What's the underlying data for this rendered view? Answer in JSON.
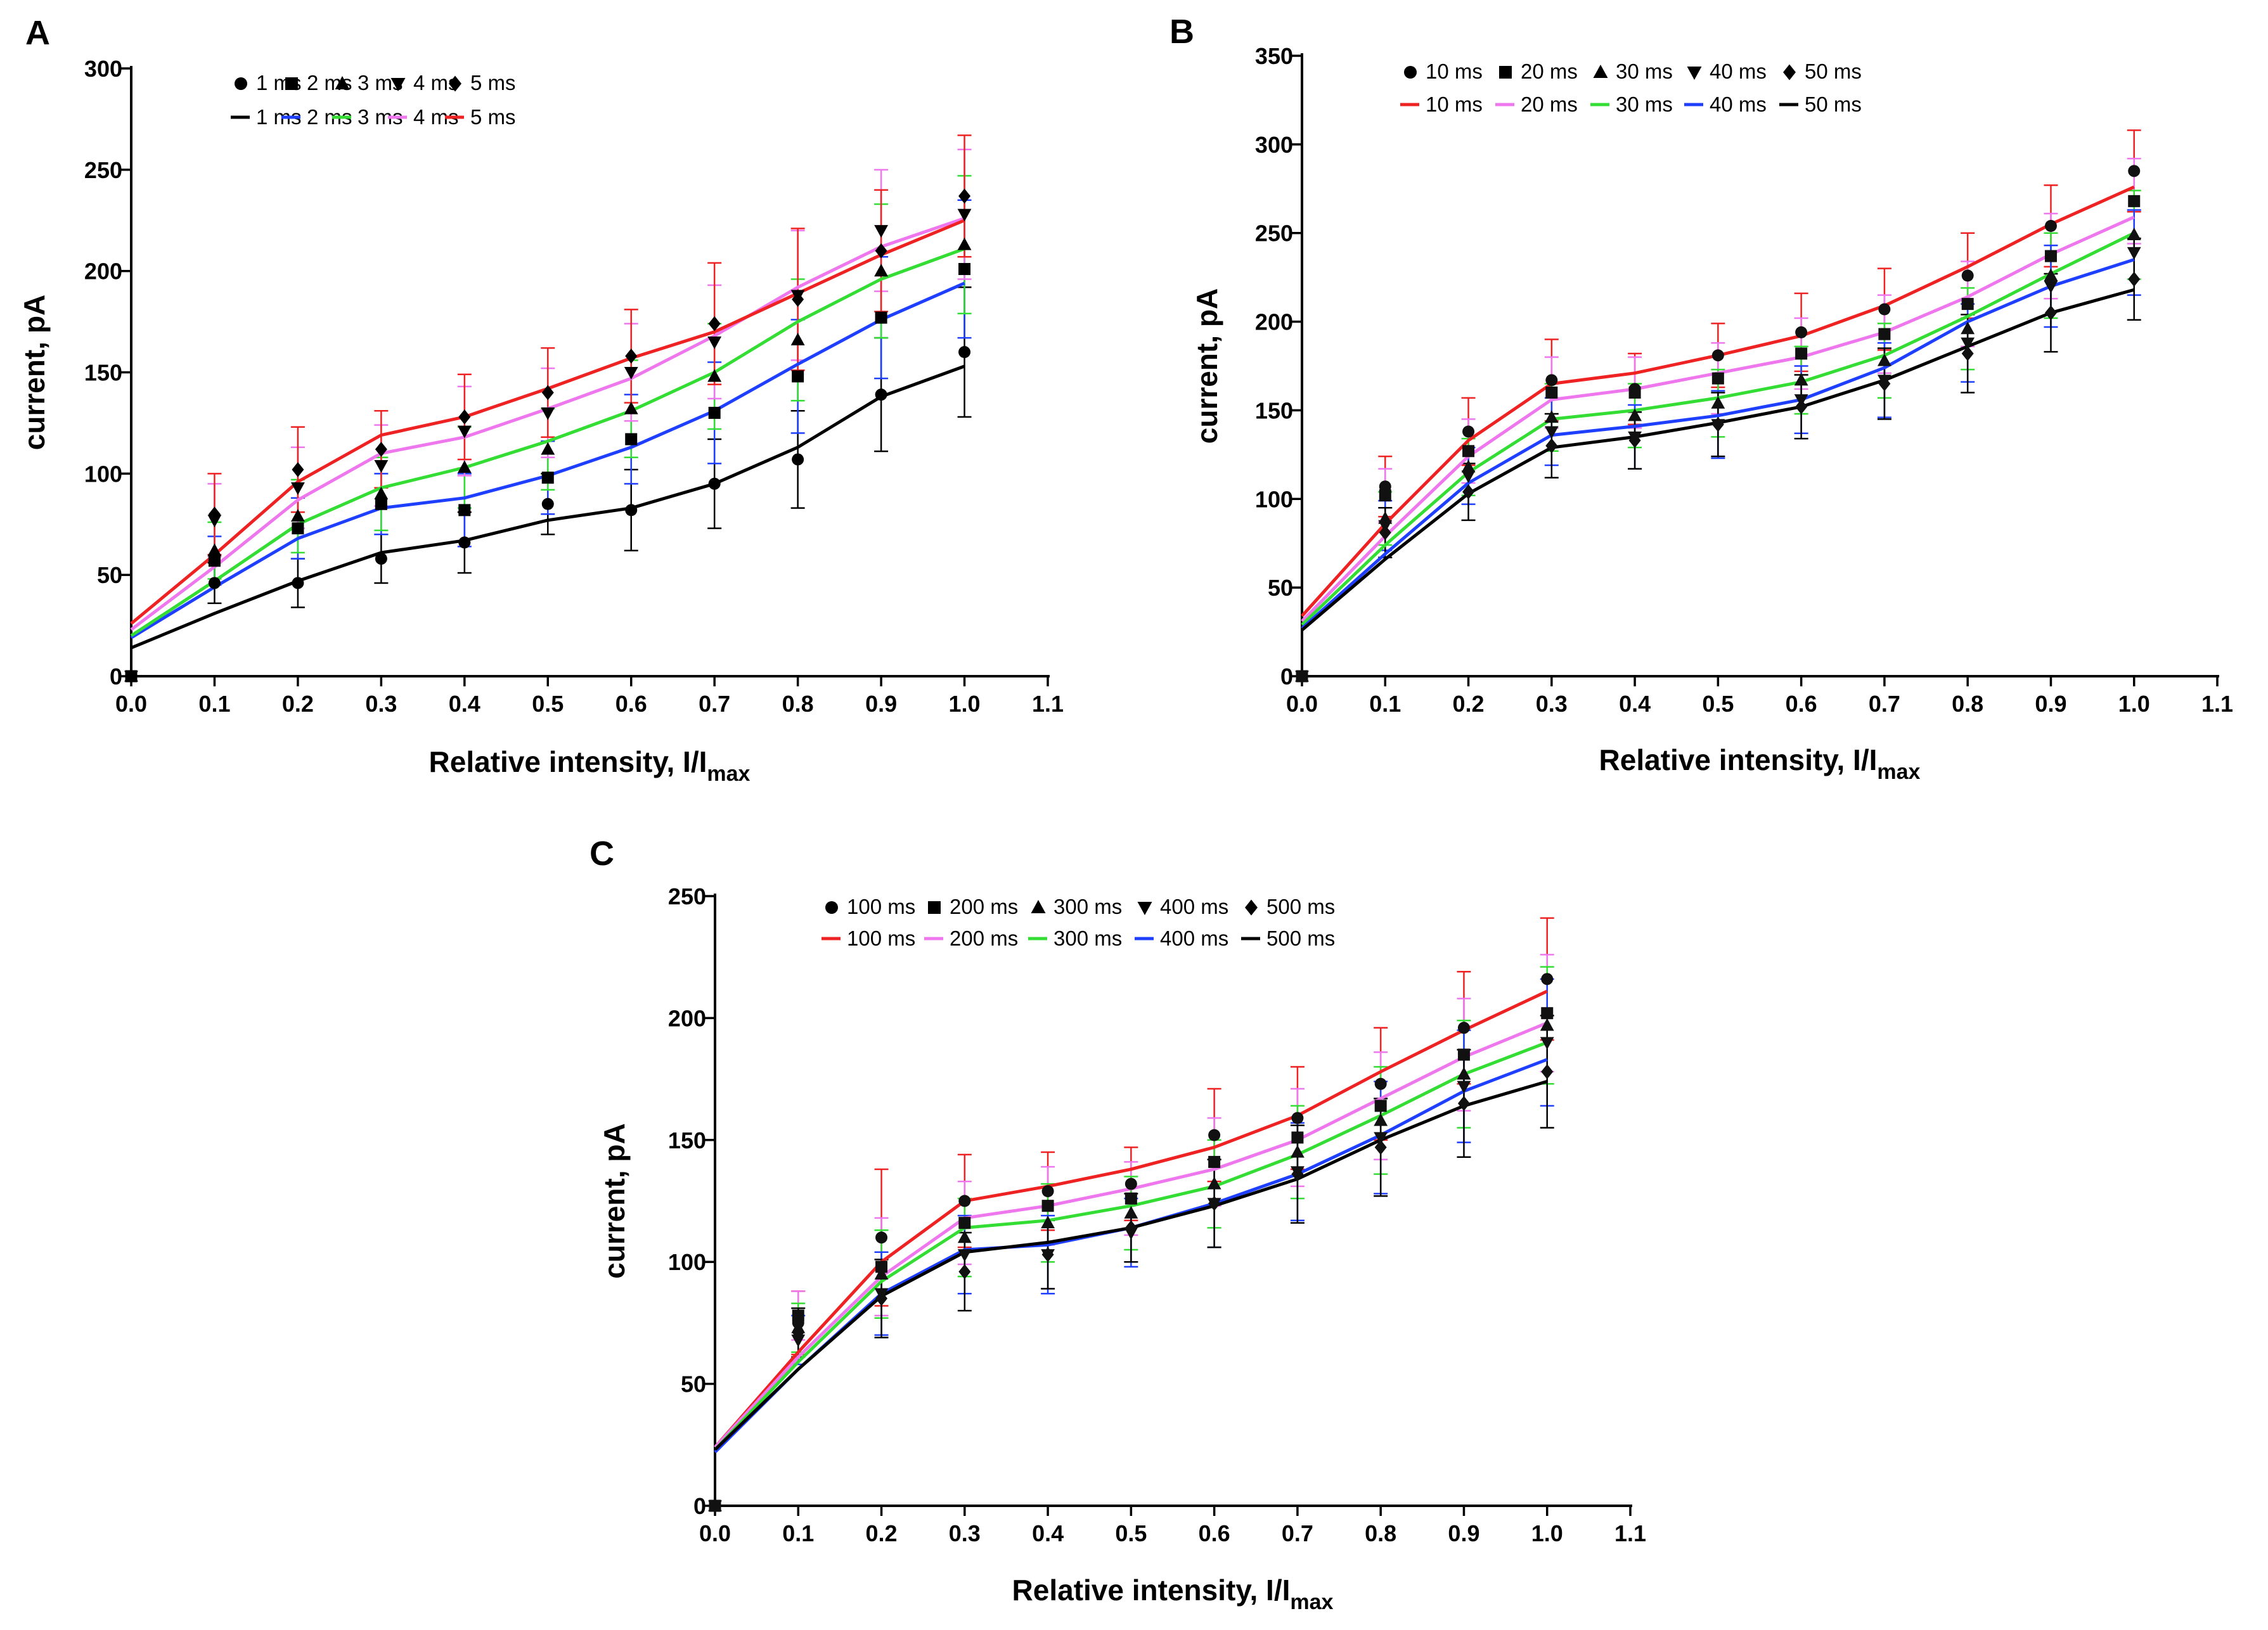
{
  "chart_data": [
    {
      "type": "line",
      "panel": "A",
      "xlabel": "Relative intensity, I/I",
      "xlabel_sub": "max",
      "ylabel": "current, pA",
      "xlim": [
        0,
        1.1
      ],
      "ylim": [
        0,
        300
      ],
      "xticks": [
        "0.0",
        "0.1",
        "0.2",
        "0.3",
        "0.4",
        "0.5",
        "0.6",
        "0.7",
        "0.8",
        "0.9",
        "1.0",
        "1.1"
      ],
      "yticks": [
        "0",
        "50",
        "100",
        "150",
        "200",
        "250",
        "300"
      ],
      "x": [
        0,
        0.1,
        0.2,
        0.3,
        0.4,
        0.5,
        0.6,
        0.7,
        0.8,
        0.9,
        1.0
      ],
      "legend_markers": [
        "1 ms",
        "2 ms",
        "3 ms",
        "4 ms",
        "5 ms"
      ],
      "legend_lines": [
        "1 ms",
        "2 ms",
        "3 ms",
        "4 ms",
        "5 ms"
      ],
      "series": [
        {
          "name": "1 ms",
          "marker": "circle",
          "color": "#000000",
          "values": [
            0,
            46,
            46,
            58,
            66,
            85,
            82,
            95,
            107,
            139,
            160
          ],
          "errors": [
            0,
            10,
            12,
            12,
            15,
            15,
            20,
            22,
            24,
            28,
            32
          ],
          "fit": [
            14,
            31,
            47,
            61,
            67,
            77,
            83,
            95,
            113,
            138,
            153
          ]
        },
        {
          "name": "2 ms",
          "marker": "square",
          "color": "#1f3fff",
          "values": [
            0,
            57,
            73,
            85,
            82,
            98,
            117,
            130,
            148,
            177,
            201
          ],
          "errors": [
            0,
            12,
            15,
            15,
            18,
            18,
            22,
            25,
            28,
            30,
            34
          ],
          "fit": [
            19,
            44,
            68,
            83,
            88,
            99,
            113,
            131,
            154,
            176,
            194
          ]
        },
        {
          "name": "3 ms",
          "marker": "triangle-up",
          "color": "#33dd33",
          "values": [
            0,
            62,
            79,
            90,
            103,
            112,
            132,
            148,
            166,
            200,
            213
          ],
          "errors": [
            0,
            14,
            18,
            18,
            20,
            20,
            24,
            26,
            30,
            33,
            34
          ],
          "fit": [
            20,
            47,
            75,
            93,
            103,
            116,
            131,
            150,
            175,
            196,
            211
          ]
        },
        {
          "name": "4 ms",
          "marker": "triangle-down",
          "color": "#ee77ee",
          "values": [
            0,
            77,
            93,
            104,
            121,
            130,
            150,
            165,
            188,
            220,
            228
          ],
          "errors": [
            0,
            18,
            20,
            20,
            22,
            22,
            24,
            28,
            32,
            30,
            32
          ],
          "fit": [
            23,
            54,
            87,
            110,
            118,
            132,
            147,
            168,
            192,
            212,
            226
          ]
        },
        {
          "name": "5 ms",
          "marker": "diamond",
          "color": "#ee2222",
          "values": [
            0,
            80,
            102,
            112,
            128,
            140,
            158,
            174,
            186,
            210,
            237
          ],
          "errors": [
            0,
            20,
            21,
            19,
            21,
            22,
            23,
            30,
            35,
            30,
            30
          ],
          "fit": [
            26,
            60,
            96,
            119,
            128,
            142,
            157,
            170,
            189,
            208,
            225
          ]
        }
      ]
    },
    {
      "type": "line",
      "panel": "B",
      "xlabel": "Relative intensity, I/I",
      "xlabel_sub": "max",
      "ylabel": "current, pA",
      "xlim": [
        0,
        1.1
      ],
      "ylim": [
        0,
        350
      ],
      "xticks": [
        "0.0",
        "0.1",
        "0.2",
        "0.3",
        "0.4",
        "0.5",
        "0.6",
        "0.7",
        "0.8",
        "0.9",
        "1.0",
        "1.1"
      ],
      "yticks": [
        "0",
        "50",
        "100",
        "150",
        "200",
        "250",
        "300",
        "350"
      ],
      "x": [
        0,
        0.1,
        0.2,
        0.3,
        0.4,
        0.5,
        0.6,
        0.7,
        0.8,
        0.9,
        1.0
      ],
      "legend_markers": [
        "10 ms",
        "20 ms",
        "30 ms",
        "40 ms",
        "50 ms"
      ],
      "legend_lines": [
        "10 ms",
        "20 ms",
        "30 ms",
        "40 ms",
        "50 ms"
      ],
      "series": [
        {
          "name": "10 ms",
          "marker": "circle",
          "color": "#ee2222",
          "values": [
            0,
            107,
            138,
            167,
            162,
            181,
            194,
            207,
            226,
            254,
            285
          ],
          "errors": [
            0,
            17,
            19,
            23,
            20,
            18,
            22,
            23,
            24,
            23,
            23
          ],
          "fit": [
            34,
            86,
            133,
            165,
            171,
            181,
            192,
            209,
            231,
            255,
            276
          ]
        },
        {
          "name": "20 ms",
          "marker": "square",
          "color": "#ee77ee",
          "values": [
            0,
            102,
            127,
            160,
            160,
            168,
            182,
            193,
            210,
            237,
            268
          ],
          "errors": [
            0,
            15,
            18,
            20,
            20,
            20,
            20,
            22,
            24,
            24,
            24
          ],
          "fit": [
            31,
            79,
            124,
            156,
            162,
            171,
            180,
            194,
            214,
            238,
            259
          ]
        },
        {
          "name": "30 ms",
          "marker": "triangle-up",
          "color": "#33dd33",
          "values": [
            0,
            89,
            118,
            146,
            147,
            154,
            167,
            178,
            196,
            226,
            249
          ],
          "errors": [
            0,
            15,
            16,
            19,
            18,
            19,
            19,
            21,
            23,
            24,
            25
          ],
          "fit": [
            29,
            74,
            115,
            145,
            150,
            157,
            166,
            181,
            203,
            227,
            250
          ]
        },
        {
          "name": "40 ms",
          "marker": "triangle-down",
          "color": "#1f3fff",
          "values": [
            0,
            85,
            113,
            138,
            135,
            142,
            156,
            167,
            188,
            220,
            239
          ],
          "errors": [
            0,
            14,
            16,
            19,
            18,
            19,
            19,
            21,
            22,
            23,
            24
          ],
          "fit": [
            27,
            69,
            109,
            136,
            141,
            147,
            156,
            174,
            200,
            220,
            235
          ]
        },
        {
          "name": "50 ms",
          "marker": "diamond",
          "color": "#000000",
          "values": [
            0,
            81,
            104,
            130,
            133,
            142,
            152,
            165,
            182,
            205,
            224
          ],
          "errors": [
            0,
            14,
            16,
            18,
            16,
            18,
            18,
            20,
            22,
            22,
            23
          ],
          "fit": [
            26,
            66,
            103,
            129,
            135,
            143,
            152,
            167,
            186,
            205,
            218
          ]
        }
      ]
    },
    {
      "type": "line",
      "panel": "C",
      "xlabel": "Relative intensity, I/I",
      "xlabel_sub": "max",
      "ylabel": "current, pA",
      "xlim": [
        0,
        1.1
      ],
      "ylim": [
        0,
        250
      ],
      "xticks": [
        "0.0",
        "0.1",
        "0.2",
        "0.3",
        "0.4",
        "0.5",
        "0.6",
        "0.7",
        "0.8",
        "0.9",
        "1.0",
        "1.1"
      ],
      "yticks": [
        "0",
        "50",
        "100",
        "150",
        "200",
        "250"
      ],
      "x": [
        0,
        0.1,
        0.2,
        0.3,
        0.4,
        0.5,
        0.6,
        0.7,
        0.8,
        0.9,
        1.0
      ],
      "legend_markers": [
        "100 ms",
        "200 ms",
        "300 ms",
        "400 ms",
        "500 ms"
      ],
      "legend_lines": [
        "100 ms",
        "200 ms",
        "300 ms",
        "400 ms",
        "500 ms"
      ],
      "series": [
        {
          "name": "100 ms",
          "marker": "circle",
          "color": "#ee2222",
          "values": [
            0,
            75,
            110,
            125,
            129,
            132,
            152,
            159,
            173,
            196,
            216
          ],
          "errors": [
            0,
            13,
            28,
            19,
            16,
            15,
            19,
            21,
            23,
            23,
            25
          ],
          "fit": [
            24,
            63,
            100,
            125,
            131,
            138,
            147,
            160,
            178,
            195,
            211
          ]
        },
        {
          "name": "200 ms",
          "marker": "square",
          "color": "#ee77ee",
          "values": [
            0,
            78,
            98,
            116,
            123,
            126,
            141,
            151,
            164,
            185,
            202
          ],
          "errors": [
            0,
            10,
            20,
            17,
            16,
            15,
            18,
            20,
            22,
            23,
            24
          ],
          "fit": [
            24,
            61,
            94,
            118,
            123,
            130,
            138,
            150,
            167,
            184,
            198
          ]
        },
        {
          "name": "300 ms",
          "marker": "triangle-up",
          "color": "#33dd33",
          "values": [
            0,
            73,
            95,
            110,
            116,
            120,
            132,
            145,
            158,
            177,
            197
          ],
          "errors": [
            0,
            10,
            18,
            16,
            16,
            15,
            18,
            19,
            22,
            22,
            24
          ],
          "fit": [
            23,
            59,
            92,
            114,
            117,
            123,
            131,
            144,
            160,
            177,
            190
          ]
        },
        {
          "name": "400 ms",
          "marker": "triangle-down",
          "color": "#1f3fff",
          "values": [
            0,
            68,
            87,
            103,
            103,
            112,
            124,
            137,
            151,
            172,
            190
          ],
          "errors": [
            0,
            10,
            17,
            16,
            16,
            14,
            18,
            20,
            23,
            23,
            26
          ],
          "fit": [
            22,
            56,
            87,
            105,
            107,
            114,
            124,
            136,
            152,
            170,
            183
          ]
        },
        {
          "name": "500 ms",
          "marker": "diamond",
          "color": "#000000",
          "values": [
            0,
            71,
            85,
            96,
            103,
            114,
            124,
            136,
            147,
            165,
            178
          ],
          "errors": [
            0,
            10,
            16,
            16,
            14,
            14,
            18,
            20,
            20,
            22,
            23
          ],
          "fit": [
            23,
            56,
            86,
            104,
            108,
            114,
            123,
            134,
            150,
            164,
            174
          ]
        }
      ]
    }
  ]
}
